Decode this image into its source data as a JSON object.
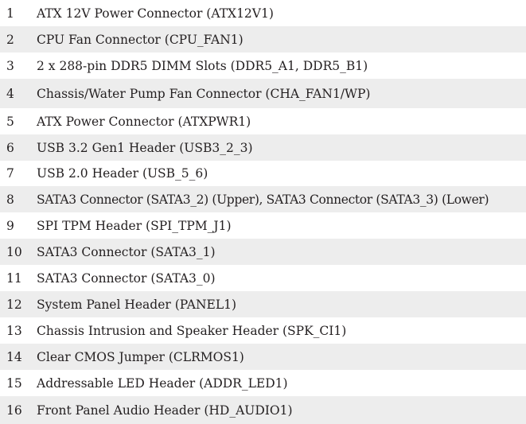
{
  "table": {
    "rows": [
      {
        "num": "1",
        "desc": "ATX 12V Power Connector (ATX12V1)"
      },
      {
        "num": "2",
        "desc": "CPU Fan Connector (CPU_FAN1)"
      },
      {
        "num": "3",
        "desc": "2 x 288-pin DDR5 DIMM Slots (DDR5_A1, DDR5_B1)"
      },
      {
        "num": "4",
        "desc": "Chassis/Water Pump Fan Connector (CHA_FAN1/WP)"
      },
      {
        "num": "5",
        "desc": "ATX Power Connector (ATXPWR1)"
      },
      {
        "num": "6",
        "desc": "USB 3.2 Gen1 Header (USB3_2_3)"
      },
      {
        "num": "7",
        "desc": "USB 2.0 Header (USB_5_6)"
      },
      {
        "num": "8",
        "desc": "SATA3 Connector (SATA3_2) (Upper), SATA3 Connector (SATA3_3) (Lower)"
      },
      {
        "num": "9",
        "desc": "SPI TPM Header (SPI_TPM_J1)"
      },
      {
        "num": "10",
        "desc": "SATA3 Connector (SATA3_1)"
      },
      {
        "num": "11",
        "desc": "SATA3 Connector (SATA3_0)"
      },
      {
        "num": "12",
        "desc": "System Panel Header (PANEL1)"
      },
      {
        "num": "13",
        "desc": "Chassis Intrusion and Speaker Header (SPK_CI1)"
      },
      {
        "num": "14",
        "desc": "Clear CMOS Jumper (CLRMOS1)"
      },
      {
        "num": "15",
        "desc": "Addressable LED Header (ADDR_LED1)"
      },
      {
        "num": "16",
        "desc": "Front Panel Audio Header (HD_AUDIO1)"
      }
    ],
    "colors": {
      "text": "#231f20",
      "shaded_row": "#ededed",
      "background": "#ffffff"
    }
  }
}
